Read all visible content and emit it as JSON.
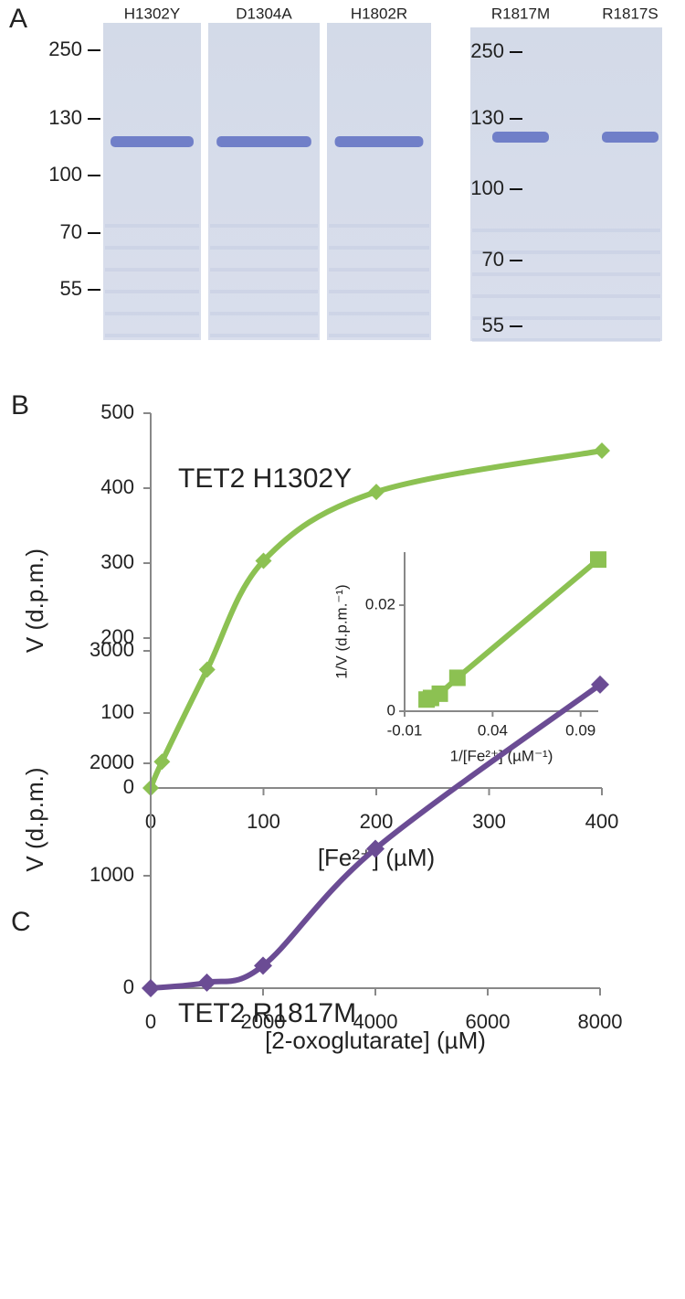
{
  "gel": {
    "panel_label": "A",
    "left": {
      "lanes": [
        "H1302Y",
        "D1304A",
        "H1802R"
      ],
      "markers": [
        250,
        130,
        100,
        70,
        55
      ]
    },
    "right": {
      "lanes": [
        "R1817M",
        "R1817S"
      ],
      "markers": [
        250,
        130,
        100,
        70,
        55
      ]
    }
  },
  "chart_data": [
    {
      "type": "line",
      "panel_label": "B",
      "title": "TET2 H1302Y",
      "x_label": "[Fe²⁺] (µM)",
      "y_label": "V (d.p.m.)",
      "x": [
        0,
        10,
        50,
        100,
        200,
        400
      ],
      "values": [
        0,
        35,
        158,
        303,
        395,
        450
      ],
      "color": "#8cc152",
      "marker": "diamond",
      "smooth": true,
      "xlim": [
        0,
        400
      ],
      "xticks": [
        0,
        100,
        200,
        300,
        400
      ],
      "ylim": [
        0,
        500
      ],
      "yticks": [
        0,
        100,
        200,
        300,
        400,
        500
      ]
    },
    {
      "type": "line",
      "x_label": "1/[Fe²⁺] (µM⁻¹)",
      "y_label": "1/V (d.p.m.⁻¹)",
      "x": [
        0.0025,
        0.005,
        0.01,
        0.02,
        0.1
      ],
      "values": [
        0.0022,
        0.0025,
        0.0033,
        0.0063,
        0.0286
      ],
      "color": "#8cc152",
      "marker": "square",
      "smooth": false,
      "xlim": [
        -0.01,
        0.1
      ],
      "xticks": [
        -0.01,
        0.04,
        0.09
      ],
      "ylim": [
        0,
        0.03
      ],
      "yticks": [
        0,
        0.02
      ]
    },
    {
      "type": "line",
      "panel_label": "C",
      "title": "TET2 R1817M",
      "x_label": "[2-oxoglutarate] (µM)",
      "y_label": "V (d.p.m.)",
      "x": [
        0,
        1000,
        2000,
        4000,
        8000
      ],
      "values": [
        0,
        50,
        200,
        1240,
        2700
      ],
      "color": "#6b4c94",
      "marker": "diamond",
      "smooth": true,
      "xlim": [
        0,
        8000
      ],
      "xticks": [
        0,
        2000,
        4000,
        6000,
        8000
      ],
      "ylim": [
        0,
        3000
      ],
      "yticks": [
        0,
        1000,
        2000,
        3000
      ]
    }
  ]
}
